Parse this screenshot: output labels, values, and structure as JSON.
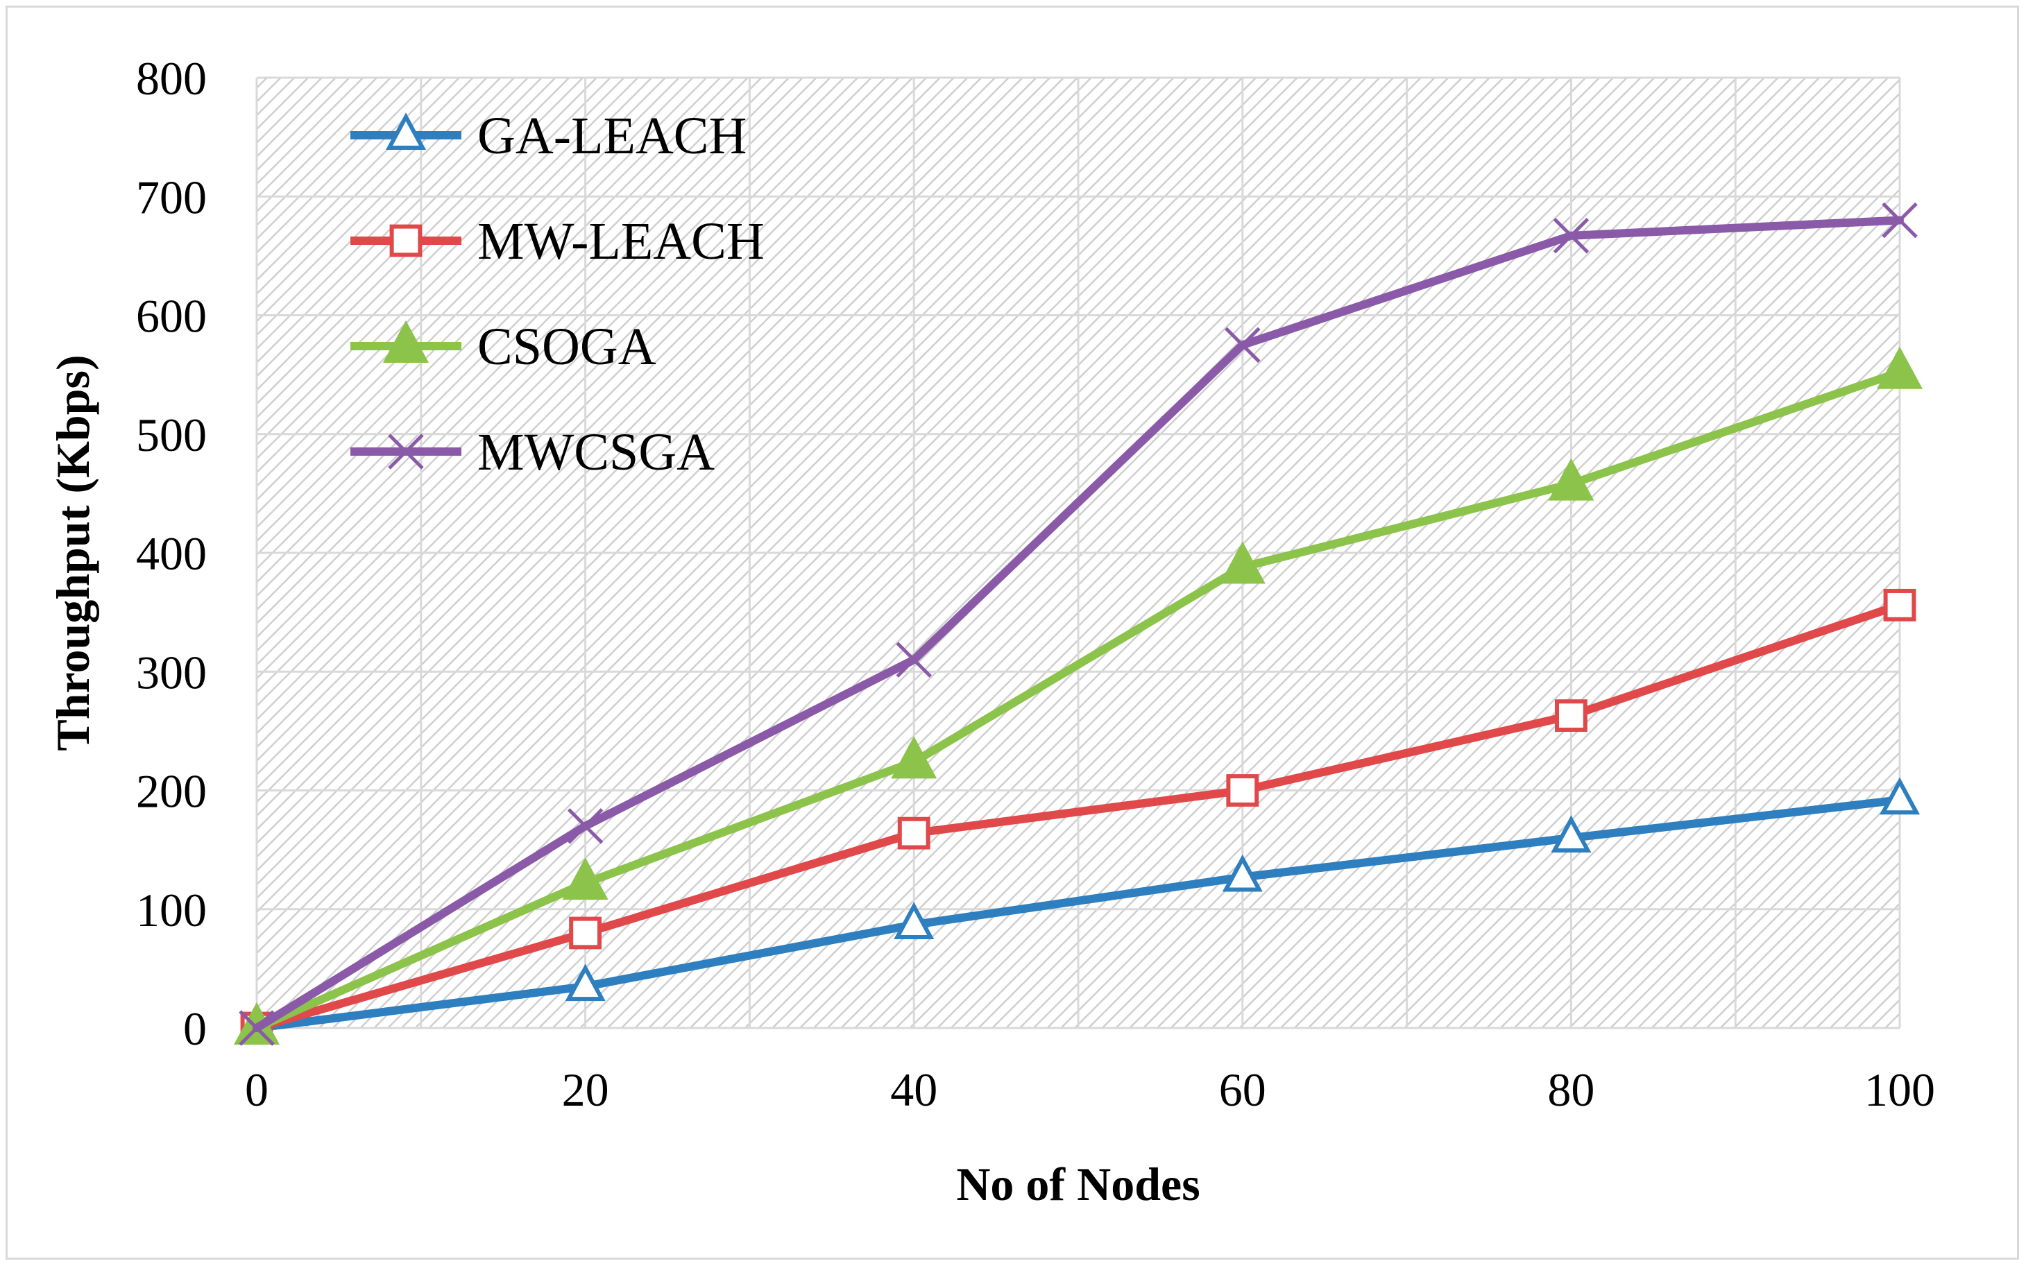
{
  "chart_data": {
    "type": "line",
    "title": "",
    "xlabel": "No of Nodes",
    "ylabel": "Throughput (Kbps)",
    "x": [
      0,
      20,
      40,
      60,
      80,
      100
    ],
    "xlim": [
      0,
      100
    ],
    "ylim": [
      0,
      800
    ],
    "xticks": [
      "0",
      "20",
      "40",
      "60",
      "80",
      "100"
    ],
    "yticks": [
      "0",
      "100",
      "200",
      "300",
      "400",
      "500",
      "600",
      "700",
      "800"
    ],
    "grid": true,
    "legend_position": "top-left",
    "series": [
      {
        "name": "GA-LEACH",
        "color": "#2e7fbf",
        "marker": "triangle-open",
        "values": [
          0,
          35,
          87,
          127,
          160,
          192
        ]
      },
      {
        "name": "MW-LEACH",
        "color": "#e0484a",
        "marker": "square-open",
        "values": [
          0,
          80,
          164,
          200,
          263,
          356
        ]
      },
      {
        "name": "CSOGA",
        "color": "#8cc34a",
        "marker": "triangle-filled",
        "values": [
          0,
          122,
          224,
          388,
          458,
          552
        ]
      },
      {
        "name": "MWCSGA",
        "color": "#8a5aa8",
        "marker": "cross",
        "values": [
          0,
          170,
          310,
          575,
          667,
          680
        ]
      }
    ]
  }
}
